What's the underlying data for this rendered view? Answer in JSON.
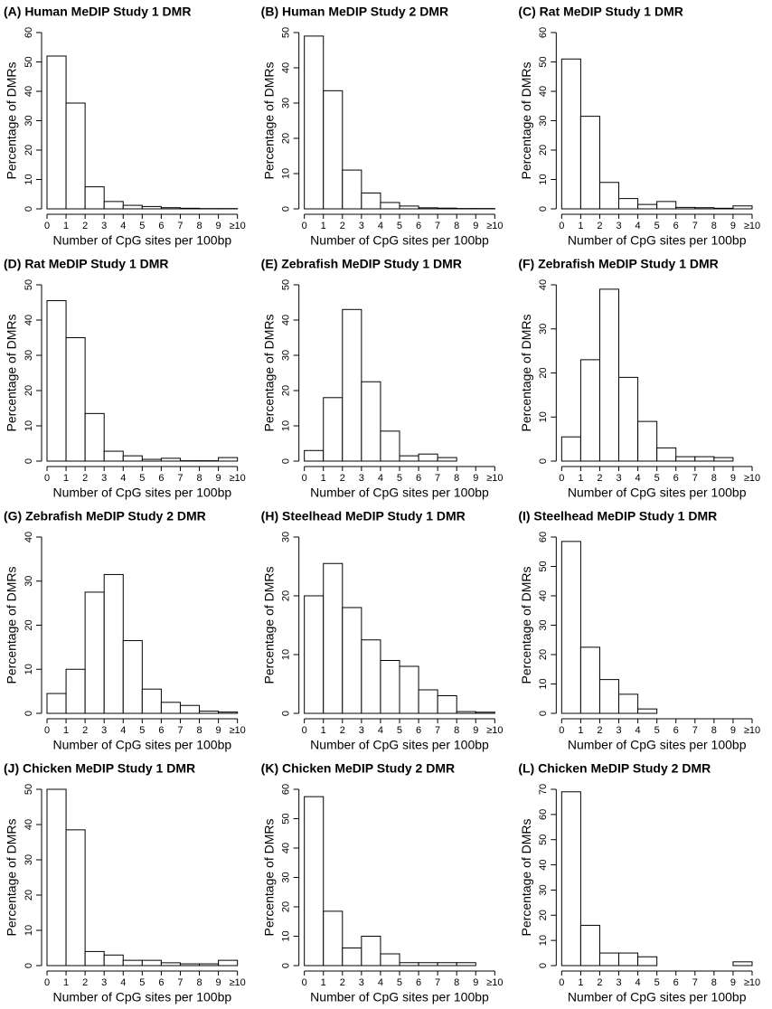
{
  "chart_data": [
    {
      "type": "histogram",
      "title": "(A) Human MeDIP Study 1 DMR",
      "ylabel": "Percentage of DMRs",
      "xlabel": "Number of CpG sites per 100bp",
      "bins": [
        0,
        1,
        2,
        3,
        4,
        5,
        6,
        7,
        8,
        9,
        10
      ],
      "values": [
        52,
        36,
        7.5,
        2.5,
        1.2,
        0.8,
        0.4,
        0.2,
        0.1,
        0.1
      ],
      "color": "#ffffff",
      "xlim": [
        0,
        10
      ],
      "ylim": [
        0,
        60
      ],
      "xticks": [
        0,
        1,
        2,
        3,
        4,
        5,
        6,
        7,
        8,
        9,
        {
          "value": 10,
          "label": "≥10"
        }
      ],
      "yticks": [
        0,
        10,
        20,
        30,
        40,
        50,
        60
      ]
    },
    {
      "type": "histogram",
      "title": "(B) Human MeDIP Study 2 DMR",
      "ylabel": "Percentage of DMRs",
      "xlabel": "Number of CpG sites per 100bp",
      "bins": [
        0,
        1,
        2,
        3,
        4,
        5,
        6,
        7,
        8,
        9,
        10
      ],
      "values": [
        49,
        33.5,
        11,
        4.5,
        1.8,
        0.8,
        0.3,
        0.2,
        0.1,
        0.1
      ],
      "color": "#ffffff",
      "xlim": [
        0,
        10
      ],
      "ylim": [
        0,
        50
      ],
      "xticks": [
        0,
        1,
        2,
        3,
        4,
        5,
        6,
        7,
        8,
        9,
        {
          "value": 10,
          "label": "≥10"
        }
      ],
      "yticks": [
        0,
        10,
        20,
        30,
        40,
        50
      ]
    },
    {
      "type": "histogram",
      "title": "(C) Rat MeDIP Study 1 DMR",
      "ylabel": "Percentage of DMRs",
      "xlabel": "Number of CpG sites per 100bp",
      "bins": [
        0,
        1,
        2,
        3,
        4,
        5,
        6,
        7,
        8,
        9,
        10
      ],
      "values": [
        51,
        31.5,
        9,
        3.5,
        1.5,
        2.5,
        0.5,
        0.4,
        0.2,
        1
      ],
      "color": "#ffffff",
      "xlim": [
        0,
        10
      ],
      "ylim": [
        0,
        60
      ],
      "xticks": [
        0,
        1,
        2,
        3,
        4,
        5,
        6,
        7,
        8,
        9,
        {
          "value": 10,
          "label": "≥10"
        }
      ],
      "yticks": [
        0,
        10,
        20,
        30,
        40,
        50,
        60
      ]
    },
    {
      "type": "histogram",
      "title": "(D) Rat MeDIP Study 1 DMR",
      "ylabel": "Percentage of DMRs",
      "xlabel": "Number of CpG sites per 100bp",
      "bins": [
        0,
        1,
        2,
        3,
        4,
        5,
        6,
        7,
        8,
        9,
        10
      ],
      "values": [
        45.5,
        35,
        13.5,
        2.8,
        1.5,
        0.5,
        0.8,
        0.1,
        0.1,
        1
      ],
      "color": "#ffffff",
      "xlim": [
        0,
        10
      ],
      "ylim": [
        0,
        50
      ],
      "xticks": [
        0,
        1,
        2,
        3,
        4,
        5,
        6,
        7,
        8,
        9,
        {
          "value": 10,
          "label": "≥10"
        }
      ],
      "yticks": [
        0,
        10,
        20,
        30,
        40,
        50
      ]
    },
    {
      "type": "histogram",
      "title": "(E) Zebrafish MeDIP Study 1 DMR",
      "ylabel": "Percentage of DMRs",
      "xlabel": "Number of CpG sites per 100bp",
      "bins": [
        0,
        1,
        2,
        3,
        4,
        5,
        6,
        7,
        8,
        9,
        10
      ],
      "values": [
        3,
        18,
        43,
        22.5,
        8.5,
        1.5,
        2,
        1,
        0,
        0
      ],
      "color": "#ffffff",
      "xlim": [
        0,
        10
      ],
      "ylim": [
        0,
        50
      ],
      "xticks": [
        0,
        1,
        2,
        3,
        4,
        5,
        6,
        7,
        8,
        9,
        {
          "value": 10,
          "label": "≥10"
        }
      ],
      "yticks": [
        0,
        10,
        20,
        30,
        40,
        50
      ]
    },
    {
      "type": "histogram",
      "title": "(F) Zebrafish MeDIP Study 1 DMR",
      "ylabel": "Percentage of DMRs",
      "xlabel": "Number of CpG sites per 100bp",
      "bins": [
        0,
        1,
        2,
        3,
        4,
        5,
        6,
        7,
        8,
        9,
        10
      ],
      "values": [
        5.5,
        23,
        39,
        19,
        9,
        3,
        1,
        1,
        0.8,
        0
      ],
      "color": "#ffffff",
      "xlim": [
        0,
        10
      ],
      "ylim": [
        0,
        40
      ],
      "xticks": [
        0,
        1,
        2,
        3,
        4,
        5,
        6,
        7,
        8,
        9,
        {
          "value": 10,
          "label": "≥10"
        }
      ],
      "yticks": [
        0,
        10,
        20,
        30,
        40
      ]
    },
    {
      "type": "histogram",
      "title": "(G) Zebrafish MeDIP Study 2 DMR",
      "ylabel": "Percentage of DMRs",
      "xlabel": "Number of CpG sites per 100bp",
      "bins": [
        0,
        1,
        2,
        3,
        4,
        5,
        6,
        7,
        8,
        9,
        10
      ],
      "values": [
        4.5,
        10,
        27.5,
        31.5,
        16.5,
        5.5,
        2.5,
        1.8,
        0.5,
        0.3
      ],
      "color": "#ffffff",
      "xlim": [
        0,
        10
      ],
      "ylim": [
        0,
        40
      ],
      "xticks": [
        0,
        1,
        2,
        3,
        4,
        5,
        6,
        7,
        8,
        9,
        {
          "value": 10,
          "label": "≥10"
        }
      ],
      "yticks": [
        0,
        10,
        20,
        30,
        40
      ]
    },
    {
      "type": "histogram",
      "title": "(H) Steelhead MeDIP Study 1 DMR",
      "ylabel": "Percentage of DMRs",
      "xlabel": "Number of CpG sites per 100bp",
      "bins": [
        0,
        1,
        2,
        3,
        4,
        5,
        6,
        7,
        8,
        9,
        10
      ],
      "values": [
        20,
        25.5,
        18,
        12.5,
        9,
        8,
        4,
        3,
        0.3,
        0.2
      ],
      "color": "#ffffff",
      "xlim": [
        0,
        10
      ],
      "ylim": [
        0,
        30
      ],
      "xticks": [
        0,
        1,
        2,
        3,
        4,
        5,
        6,
        7,
        8,
        9,
        {
          "value": 10,
          "label": "≥10"
        }
      ],
      "yticks": [
        0,
        10,
        20,
        30
      ]
    },
    {
      "type": "histogram",
      "title": "(I) Steelhead MeDIP Study 1 DMR",
      "ylabel": "Percentage of DMRs",
      "xlabel": "Number of CpG sites per 100bp",
      "bins": [
        0,
        1,
        2,
        3,
        4,
        5,
        6,
        7,
        8,
        9,
        10
      ],
      "values": [
        58.5,
        22.5,
        11.5,
        6.5,
        1.5,
        0,
        0,
        0,
        0,
        0
      ],
      "color": "#ffffff",
      "xlim": [
        0,
        10
      ],
      "ylim": [
        0,
        60
      ],
      "xticks": [
        0,
        1,
        2,
        3,
        4,
        5,
        6,
        7,
        8,
        9,
        {
          "value": 10,
          "label": "≥10"
        }
      ],
      "yticks": [
        0,
        10,
        20,
        30,
        40,
        50,
        60
      ]
    },
    {
      "type": "histogram",
      "title": "(J) Chicken MeDIP Study 1 DMR",
      "ylabel": "Percentage of DMRs",
      "xlabel": "Number of CpG sites per 100bp",
      "bins": [
        0,
        1,
        2,
        3,
        4,
        5,
        6,
        7,
        8,
        9,
        10
      ],
      "values": [
        50,
        38.5,
        4,
        3,
        1.5,
        1.5,
        0.8,
        0.5,
        0.5,
        1.5
      ],
      "color": "#ffffff",
      "xlim": [
        0,
        10
      ],
      "ylim": [
        0,
        50
      ],
      "xticks": [
        0,
        1,
        2,
        3,
        4,
        5,
        6,
        7,
        8,
        9,
        {
          "value": 10,
          "label": "≥10"
        }
      ],
      "yticks": [
        0,
        10,
        20,
        30,
        40,
        50
      ]
    },
    {
      "type": "histogram",
      "title": "(K) Chicken MeDIP Study 2 DMR",
      "ylabel": "Percentage of DMRs",
      "xlabel": "Number of CpG sites per 100bp",
      "bins": [
        0,
        1,
        2,
        3,
        4,
        5,
        6,
        7,
        8,
        9,
        10
      ],
      "values": [
        57.5,
        18.5,
        6,
        10,
        4,
        1,
        1,
        1,
        1,
        0
      ],
      "color": "#ffffff",
      "xlim": [
        0,
        10
      ],
      "ylim": [
        0,
        60
      ],
      "xticks": [
        0,
        1,
        2,
        3,
        4,
        5,
        6,
        7,
        8,
        9,
        {
          "value": 10,
          "label": "≥10"
        }
      ],
      "yticks": [
        0,
        10,
        20,
        30,
        40,
        50,
        60
      ]
    },
    {
      "type": "histogram",
      "title": "(L) Chicken MeDIP Study 2 DMR",
      "ylabel": "Percentage of DMRs",
      "xlabel": "Number of CpG sites per 100bp",
      "bins": [
        0,
        1,
        2,
        3,
        4,
        5,
        6,
        7,
        8,
        9,
        10
      ],
      "values": [
        69,
        16,
        5,
        5,
        3.5,
        0,
        0,
        0,
        0,
        1.5
      ],
      "color": "#ffffff",
      "xlim": [
        0,
        10
      ],
      "ylim": [
        0,
        70
      ],
      "xticks": [
        0,
        1,
        2,
        3,
        4,
        5,
        6,
        7,
        8,
        9,
        {
          "value": 10,
          "label": "≥10"
        }
      ],
      "yticks": [
        0,
        10,
        20,
        30,
        40,
        50,
        60,
        70
      ]
    }
  ]
}
